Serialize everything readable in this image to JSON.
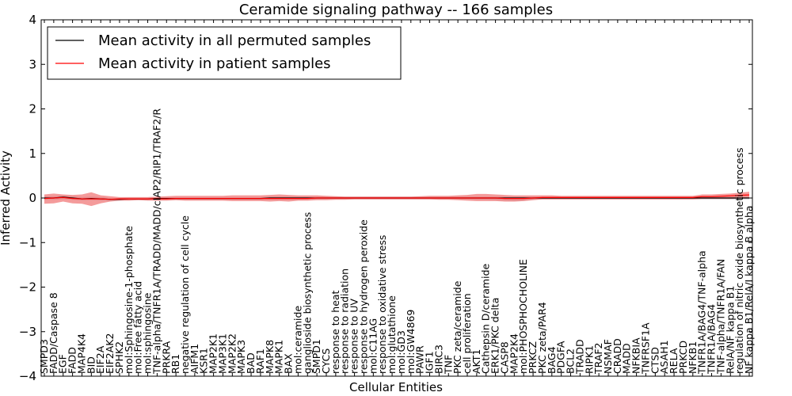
{
  "chart_data": {
    "type": "line",
    "title": "Ceramide signaling pathway -- 166 samples",
    "xlabel": "Cellular Entities",
    "ylabel": "Inferred Activity",
    "ylim": [
      -4,
      4
    ],
    "yticks": [
      "−4",
      "−3",
      "−2",
      "−1",
      "0",
      "1",
      "2",
      "3",
      "4"
    ],
    "legend": {
      "placement": "top-left",
      "entries": [
        {
          "label": "Mean activity in all permuted samples",
          "color": "#000000"
        },
        {
          "label": "Mean activity in patient samples",
          "color": "#ff0000"
        }
      ]
    },
    "categories": [
      "SMPD3",
      "FADD/Caspase 8",
      "EGF",
      "FADD",
      "MAP4K4",
      "BID",
      "EIF2A",
      "EIF2AK2",
      "SPHK2",
      "mol:Sphingosine-1-phosphate",
      "mol:Free fatty acid",
      "mol:sphingosine",
      "TNF-alpha/TNFR1A/TRADD/MADD/cIAP2/RIP1/TRAF2/R",
      "PRKRA",
      "RB1",
      "negative regulation of cell cycle",
      "AIFM1",
      "KSR1",
      "MAP2K1",
      "MAP3K1",
      "MAP2K2",
      "MAPK3",
      "BAD",
      "RAF1",
      "MAPK8",
      "MAPK1",
      "BAX",
      "mol:ceramide",
      "ganglioside biosynthetic process",
      "SMPD1",
      "CYCS",
      "response to heat",
      "response to radiation",
      "response to UV",
      "response to hydrogen peroxide",
      "mol:C11AG",
      "response to oxidative stress",
      "mol:glutathione",
      "mol:GD3",
      "mol:GW4869",
      "PAWR",
      "IGF1",
      "BIRC3",
      "TNF",
      "PKC zeta/ceramide",
      "cell proliferation",
      "AKT1",
      "Cathepsin D/ceramide",
      "ERK1/PKC delta",
      "CASP8",
      "MAP2K4",
      "mol:PHOSPHOCHOLINE",
      "PRKCZ",
      "PKC zeta/PAR4",
      "BAG4",
      "PDGFA",
      "BCL2",
      "TRADD",
      "RIPK1",
      "TRAF2",
      "NSMAF",
      "CRADD",
      "MADD",
      "NFKBIA",
      "TNFRSF1A",
      "CTSD",
      "ASAH1",
      "RELA",
      "PRKCD",
      "NFKB1",
      "TNFR1A/BAG4/TNF-alpha",
      "TNFR1A/BAG4",
      "TNF-alpha/TNFR1A/FAN",
      "RelA/NF kappa B1",
      "regulation of nitric oxide biosynthetic process",
      "NF kappa B1/RelA/I kappa B alpha"
    ],
    "series": [
      {
        "name": "Mean activity in patient samples",
        "color": "#ff0000",
        "values": [
          -0.01,
          0.0,
          0.01,
          -0.01,
          -0.02,
          -0.02,
          -0.02,
          -0.03,
          -0.02,
          -0.02,
          -0.02,
          -0.02,
          -0.02,
          -0.02,
          -0.01,
          -0.01,
          -0.01,
          -0.01,
          -0.01,
          -0.01,
          -0.01,
          -0.01,
          -0.01,
          -0.01,
          -0.01,
          -0.01,
          -0.01,
          -0.01,
          -0.01,
          0.0,
          0.0,
          0.0,
          0.0,
          0.0,
          0.0,
          0.0,
          0.0,
          0.0,
          0.0,
          0.0,
          0.0,
          0.0,
          0.0,
          0.0,
          0.0,
          0.0,
          0.0,
          0.0,
          0.0,
          -0.01,
          -0.01,
          -0.01,
          0.0,
          0.01,
          0.01,
          0.01,
          0.01,
          0.01,
          0.01,
          0.01,
          0.01,
          0.01,
          0.01,
          0.01,
          0.01,
          0.01,
          0.01,
          0.01,
          0.01,
          0.01,
          0.03,
          0.03,
          0.04,
          0.05,
          0.06,
          0.07
        ],
        "lower": [
          -0.13,
          -0.12,
          -0.08,
          -0.12,
          -0.13,
          -0.18,
          -0.12,
          -0.08,
          -0.06,
          -0.06,
          -0.05,
          -0.06,
          -0.06,
          -0.06,
          -0.05,
          -0.06,
          -0.06,
          -0.06,
          -0.06,
          -0.06,
          -0.07,
          -0.07,
          -0.07,
          -0.07,
          -0.08,
          -0.07,
          -0.08,
          -0.06,
          -0.06,
          -0.05,
          -0.05,
          -0.04,
          -0.04,
          -0.03,
          -0.03,
          -0.03,
          -0.03,
          -0.03,
          -0.03,
          -0.03,
          -0.03,
          -0.03,
          -0.04,
          -0.04,
          -0.05,
          -0.06,
          -0.07,
          -0.07,
          -0.07,
          -0.08,
          -0.08,
          -0.07,
          -0.05,
          -0.03,
          -0.03,
          -0.03,
          -0.03,
          -0.03,
          -0.03,
          -0.03,
          -0.03,
          -0.03,
          -0.03,
          -0.03,
          -0.03,
          -0.03,
          -0.03,
          -0.03,
          -0.03,
          -0.03,
          -0.02,
          -0.02,
          -0.02,
          -0.02,
          -0.01,
          0.0
        ],
        "upper": [
          0.08,
          0.1,
          0.08,
          0.07,
          0.08,
          0.13,
          0.06,
          0.04,
          0.02,
          0.02,
          0.02,
          0.02,
          0.03,
          0.04,
          0.05,
          0.05,
          0.05,
          0.05,
          0.05,
          0.05,
          0.06,
          0.06,
          0.06,
          0.06,
          0.07,
          0.08,
          0.07,
          0.06,
          0.06,
          0.06,
          0.05,
          0.04,
          0.03,
          0.03,
          0.03,
          0.03,
          0.03,
          0.03,
          0.03,
          0.03,
          0.04,
          0.05,
          0.05,
          0.05,
          0.06,
          0.07,
          0.09,
          0.09,
          0.08,
          0.07,
          0.06,
          0.06,
          0.06,
          0.06,
          0.06,
          0.05,
          0.05,
          0.05,
          0.05,
          0.05,
          0.05,
          0.05,
          0.05,
          0.05,
          0.05,
          0.05,
          0.05,
          0.05,
          0.05,
          0.05,
          0.08,
          0.08,
          0.09,
          0.1,
          0.12,
          0.14
        ]
      },
      {
        "name": "Mean activity in all permuted samples",
        "color": "#000000",
        "values": [
          0.0,
          0.0,
          0.02,
          0.0,
          -0.02,
          -0.01,
          -0.02,
          -0.03,
          -0.03,
          -0.02,
          -0.02,
          -0.02,
          -0.01,
          -0.01,
          -0.01,
          -0.01,
          -0.01,
          -0.01,
          -0.01,
          -0.01,
          -0.01,
          -0.01,
          -0.01,
          -0.01,
          0.0,
          0.0,
          0.0,
          0.0,
          0.0,
          0.0,
          0.0,
          0.0,
          0.0,
          0.0,
          0.0,
          0.0,
          0.0,
          0.0,
          0.0,
          0.0,
          0.0,
          0.0,
          0.0,
          0.0,
          0.0,
          0.0,
          0.0,
          0.0,
          0.0,
          0.0,
          0.0,
          0.0,
          0.0,
          0.0,
          0.0,
          0.0,
          0.0,
          0.0,
          0.0,
          0.0,
          0.0,
          0.0,
          0.0,
          0.0,
          0.0,
          0.0,
          0.0,
          0.0,
          0.0,
          0.0,
          0.0,
          0.0,
          0.0,
          0.0,
          0.0,
          0.0
        ],
        "lower": [
          -0.04,
          -0.04,
          -0.03,
          -0.04,
          -0.06,
          -0.05,
          -0.06,
          -0.06,
          -0.06,
          -0.05,
          -0.05,
          -0.05,
          -0.04,
          -0.04,
          -0.04,
          -0.04,
          -0.04,
          -0.04,
          -0.04,
          -0.04,
          -0.04,
          -0.04,
          -0.04,
          -0.04,
          -0.04,
          -0.04,
          -0.04,
          -0.04,
          -0.03,
          -0.03,
          -0.03,
          -0.03,
          -0.03,
          -0.03,
          -0.03,
          -0.03,
          -0.03,
          -0.03,
          -0.03,
          -0.03,
          -0.03,
          -0.03,
          -0.03,
          -0.03,
          -0.03,
          -0.03,
          -0.04,
          -0.04,
          -0.05,
          -0.06,
          -0.07,
          -0.06,
          -0.04,
          -0.03,
          -0.03,
          -0.03,
          -0.03,
          -0.03,
          -0.03,
          -0.03,
          -0.03,
          -0.03,
          -0.03,
          -0.03,
          -0.03,
          -0.03,
          -0.03,
          -0.03,
          -0.03,
          -0.03,
          -0.03,
          -0.03,
          -0.03,
          -0.03,
          -0.03,
          -0.03
        ],
        "upper": [
          0.04,
          0.04,
          0.06,
          0.04,
          0.02,
          0.03,
          0.02,
          0.0,
          0.0,
          0.01,
          0.01,
          0.01,
          0.02,
          0.02,
          0.02,
          0.02,
          0.02,
          0.02,
          0.02,
          0.02,
          0.02,
          0.02,
          0.02,
          0.02,
          0.03,
          0.03,
          0.03,
          0.03,
          0.03,
          0.03,
          0.03,
          0.03,
          0.03,
          0.03,
          0.03,
          0.03,
          0.03,
          0.03,
          0.03,
          0.03,
          0.03,
          0.03,
          0.03,
          0.03,
          0.03,
          0.03,
          0.03,
          0.03,
          0.03,
          0.03,
          0.03,
          0.03,
          0.03,
          0.03,
          0.03,
          0.03,
          0.03,
          0.03,
          0.03,
          0.03,
          0.03,
          0.03,
          0.03,
          0.03,
          0.03,
          0.03,
          0.03,
          0.03,
          0.03,
          0.03,
          0.03,
          0.03,
          0.03,
          0.03,
          0.03,
          0.03
        ]
      }
    ],
    "grid": false
  }
}
